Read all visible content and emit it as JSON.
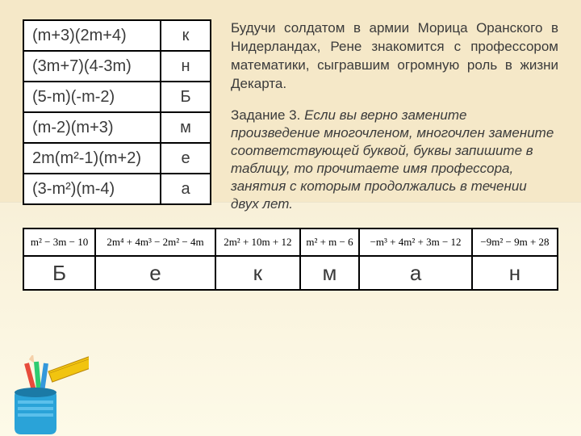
{
  "colors": {
    "page_bg_top": "#f5e8c8",
    "page_bg_bottom": "#fdfae8",
    "table_bg": "#ffffff",
    "border": "#000000",
    "text": "#3a3a3a"
  },
  "map_table": {
    "rows": [
      {
        "expr": "(m+3)(2m+4)",
        "letter": "к"
      },
      {
        "expr": "(3m+7)(4-3m)",
        "letter": "н"
      },
      {
        "expr": "(5-m)(-m-2)",
        "letter": "Б"
      },
      {
        "expr": "(m-2)(m+3)",
        "letter": "м"
      },
      {
        "expr": "2m(m²-1)(m+2)",
        "letter": "е"
      },
      {
        "expr": "(3-m²)(m-4)",
        "letter": "а"
      }
    ]
  },
  "story": "Будучи солдатом в армии Морица Оранского в Нидерландах, Рене знакомится с профессором математики, сыгравшим огромную роль в жизни Декарта.",
  "task": {
    "label": "Задание 3.",
    "body": "Если вы верно замените произведение многочленом, многочлен замените соответствующей буквой, буквы запишите в таблицу, то прочитаете имя профессора, занятия с которым продолжались в течении двух лет."
  },
  "answer_table": {
    "formulas": [
      "m² − 3m − 10",
      "2m⁴ + 4m³ − 2m² − 4m",
      "2m² + 10m + 12",
      "m² + m − 6",
      "−m³ + 4m² + 3m − 12",
      "−9m² − 9m + 28"
    ],
    "letters": [
      "Б",
      "е",
      "к",
      "м",
      "а",
      "н"
    ]
  },
  "deco": {
    "cup_color": "#2aa3d8",
    "pencil_colors": [
      "#e74c3c",
      "#2ecc71",
      "#3498db"
    ],
    "ruler_color": "#f1c40f"
  }
}
